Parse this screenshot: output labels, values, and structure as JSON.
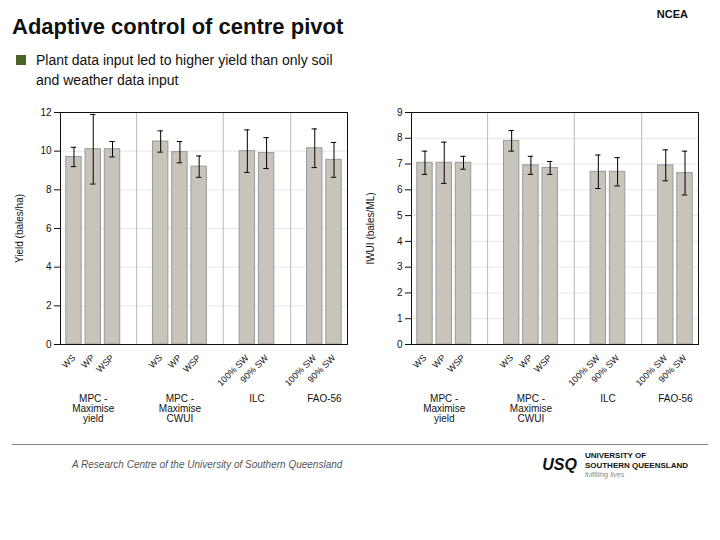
{
  "title": "Adaptive control of centre pivot",
  "annotations": [
    "Plant data input led to higher yield than only soil",
    "and weather data input",
    "A Research Centre of the University of Southern Queensland",
    "NCEA",
    "USQ",
    "UNIVERSITY OF",
    "SOUTHERN QUEENSLAND",
    "fulfilling lives"
  ],
  "chart_data": [
    {
      "type": "bar",
      "ylabel": "Yield (bales/ha)",
      "categories": [
        "WS",
        "WP",
        "WSP",
        "WS",
        "WP",
        "WSP",
        "100% SW",
        "90% SW",
        "100% SW",
        "90% SW"
      ],
      "groups": [
        "MPC -\nMaximise\nyield",
        "MPC -\nMaximise\nyield",
        "MPC -\nMaximise\nyield",
        "MPC -\nMaximise\nCWUI",
        "MPC -\nMaximise\nCWUI",
        "MPC -\nMaximise\nCWUI",
        "ILC",
        "ILC",
        "FAO-56",
        "FAO-56"
      ],
      "values": [
        9.7,
        10.1,
        10.1,
        10.5,
        9.95,
        9.2,
        10.0,
        9.9,
        10.15,
        9.55
      ],
      "errors": [
        0.5,
        1.8,
        0.4,
        0.55,
        0.55,
        0.55,
        1.1,
        0.8,
        1.0,
        0.9
      ],
      "color": "#c8c4bc",
      "ylim": [
        0,
        12
      ],
      "yticks": [
        0,
        2,
        4,
        6,
        8,
        10,
        12
      ],
      "grid": true
    },
    {
      "type": "bar",
      "ylabel": "IWUI (bales/ML)",
      "categories": [
        "WS",
        "WP",
        "WSP",
        "WS",
        "WP",
        "WSP",
        "100% SW",
        "90% SW",
        "100% SW",
        "90% SW"
      ],
      "groups": [
        "MPC -\nMaximise\nyield",
        "MPC -\nMaximise\nyield",
        "MPC -\nMaximise\nyield",
        "MPC -\nMaximise\nCWUI",
        "MPC -\nMaximise\nCWUI",
        "MPC -\nMaximise\nCWUI",
        "ILC",
        "ILC",
        "FAO-56",
        "FAO-56"
      ],
      "values": [
        7.05,
        7.05,
        7.05,
        7.9,
        6.95,
        6.85,
        6.7,
        6.7,
        6.95,
        6.65
      ],
      "errors": [
        0.45,
        0.8,
        0.25,
        0.4,
        0.35,
        0.25,
        0.65,
        0.55,
        0.6,
        0.85
      ],
      "color": "#c8c4bc",
      "ylim": [
        0,
        9
      ],
      "yticks": [
        0,
        1,
        2,
        3,
        4,
        5,
        6,
        7,
        8,
        9
      ],
      "grid": true
    }
  ]
}
